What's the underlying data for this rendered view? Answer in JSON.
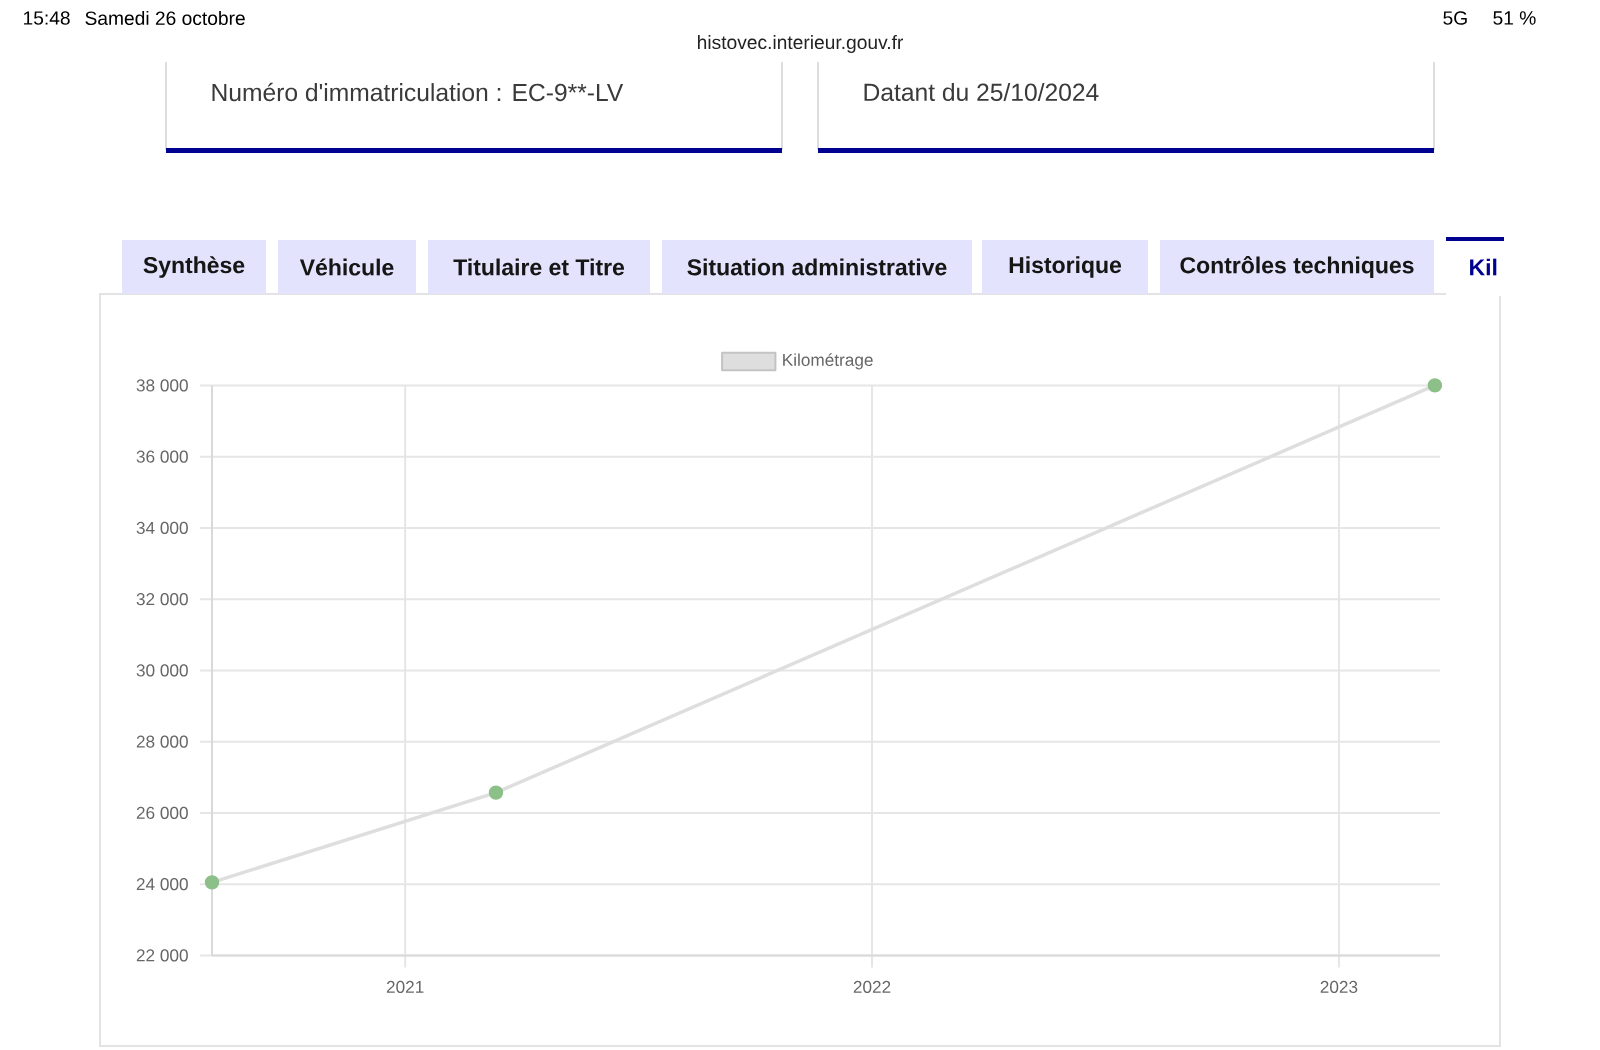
{
  "chart_data": {
    "type": "line",
    "x": [
      "2020-08-03",
      "2021-03-13",
      "2023-03-17"
    ],
    "series": [
      {
        "name": "Kilométrage",
        "color": "#dedede",
        "colors": [
          "#8dbf88",
          "#8dbf88",
          "#8dbf88"
        ],
        "values": [
          24050,
          26570,
          38000
        ]
      }
    ],
    "xlim": [
      "2020-08-03",
      "2023-03-21"
    ],
    "xticks": [
      "2021",
      "2022",
      "2023"
    ],
    "ylim": [
      22000,
      38000
    ],
    "yticks": [
      {
        "value": 22000,
        "label": "22 000"
      },
      {
        "value": 24000,
        "label": "24 000"
      },
      {
        "value": 26000,
        "label": "26 000"
      },
      {
        "value": 28000,
        "label": "28 000"
      },
      {
        "value": 30000,
        "label": "30 000"
      },
      {
        "value": 32000,
        "label": "32 000"
      },
      {
        "value": 34000,
        "label": "34 000"
      },
      {
        "value": 36000,
        "label": "36 000"
      },
      {
        "value": 38000,
        "label": "38 000"
      }
    ],
    "grid": true,
    "legend": "top",
    "marker": "circle",
    "line_style": "solid",
    "annotations": [
      "Numéro d'immatriculation : EC-9**-LV",
      "Datant du 25/10/2024",
      "Synthèse",
      "Véhicule",
      "Titulaire et Titre",
      "Situation administrative",
      "Historique",
      "Contrôles techniques",
      "Kil",
      "15:48",
      "Samedi 26 octobre",
      "histovec.interieur.gouv.fr",
      "5G",
      "51 %"
    ]
  }
}
